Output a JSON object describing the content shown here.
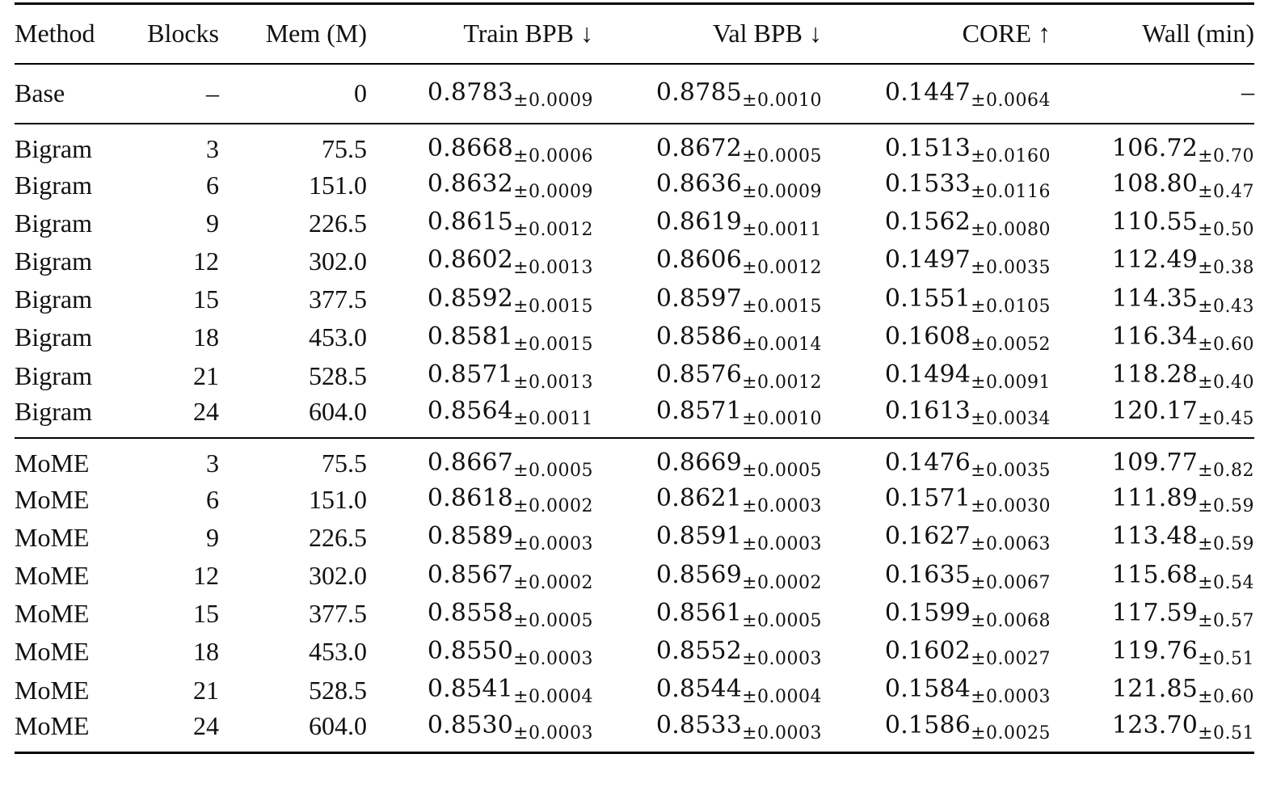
{
  "table": {
    "headers": [
      "Method",
      "Blocks",
      "Mem (M)",
      "Train BPB ↓",
      "Val BPB ↓",
      "CORE ↑",
      "Wall (min)"
    ],
    "base": {
      "method": "Base",
      "blocks": "–",
      "mem": "0",
      "train": "0.8783",
      "train_pm": "±0.0009",
      "val": "0.8785",
      "val_pm": "±0.0010",
      "core": "0.1447",
      "core_pm": "±0.0064",
      "wall": "–",
      "wall_pm": ""
    },
    "bigram": [
      {
        "method": "Bigram",
        "blocks": "3",
        "mem": "75.5",
        "train": "0.8668",
        "train_pm": "±0.0006",
        "val": "0.8672",
        "val_pm": "±0.0005",
        "core": "0.1513",
        "core_pm": "±0.0160",
        "wall": "106.72",
        "wall_pm": "±0.70"
      },
      {
        "method": "Bigram",
        "blocks": "6",
        "mem": "151.0",
        "train": "0.8632",
        "train_pm": "±0.0009",
        "val": "0.8636",
        "val_pm": "±0.0009",
        "core": "0.1533",
        "core_pm": "±0.0116",
        "wall": "108.80",
        "wall_pm": "±0.47"
      },
      {
        "method": "Bigram",
        "blocks": "9",
        "mem": "226.5",
        "train": "0.8615",
        "train_pm": "±0.0012",
        "val": "0.8619",
        "val_pm": "±0.0011",
        "core": "0.1562",
        "core_pm": "±0.0080",
        "wall": "110.55",
        "wall_pm": "±0.50"
      },
      {
        "method": "Bigram",
        "blocks": "12",
        "mem": "302.0",
        "train": "0.8602",
        "train_pm": "±0.0013",
        "val": "0.8606",
        "val_pm": "±0.0012",
        "core": "0.1497",
        "core_pm": "±0.0035",
        "wall": "112.49",
        "wall_pm": "±0.38"
      },
      {
        "method": "Bigram",
        "blocks": "15",
        "mem": "377.5",
        "train": "0.8592",
        "train_pm": "±0.0015",
        "val": "0.8597",
        "val_pm": "±0.0015",
        "core": "0.1551",
        "core_pm": "±0.0105",
        "wall": "114.35",
        "wall_pm": "±0.43"
      },
      {
        "method": "Bigram",
        "blocks": "18",
        "mem": "453.0",
        "train": "0.8581",
        "train_pm": "±0.0015",
        "val": "0.8586",
        "val_pm": "±0.0014",
        "core": "0.1608",
        "core_pm": "±0.0052",
        "wall": "116.34",
        "wall_pm": "±0.60"
      },
      {
        "method": "Bigram",
        "blocks": "21",
        "mem": "528.5",
        "train": "0.8571",
        "train_pm": "±0.0013",
        "val": "0.8576",
        "val_pm": "±0.0012",
        "core": "0.1494",
        "core_pm": "±0.0091",
        "wall": "118.28",
        "wall_pm": "±0.40"
      },
      {
        "method": "Bigram",
        "blocks": "24",
        "mem": "604.0",
        "train": "0.8564",
        "train_pm": "±0.0011",
        "val": "0.8571",
        "val_pm": "±0.0010",
        "core": "0.1613",
        "core_pm": "±0.0034",
        "wall": "120.17",
        "wall_pm": "±0.45"
      }
    ],
    "mome": [
      {
        "method": "MoME",
        "blocks": "3",
        "mem": "75.5",
        "train": "0.8667",
        "train_pm": "±0.0005",
        "val": "0.8669",
        "val_pm": "±0.0005",
        "core": "0.1476",
        "core_pm": "±0.0035",
        "wall": "109.77",
        "wall_pm": "±0.82"
      },
      {
        "method": "MoME",
        "blocks": "6",
        "mem": "151.0",
        "train": "0.8618",
        "train_pm": "±0.0002",
        "val": "0.8621",
        "val_pm": "±0.0003",
        "core": "0.1571",
        "core_pm": "±0.0030",
        "wall": "111.89",
        "wall_pm": "±0.59"
      },
      {
        "method": "MoME",
        "blocks": "9",
        "mem": "226.5",
        "train": "0.8589",
        "train_pm": "±0.0003",
        "val": "0.8591",
        "val_pm": "±0.0003",
        "core": "0.1627",
        "core_pm": "±0.0063",
        "wall": "113.48",
        "wall_pm": "±0.59"
      },
      {
        "method": "MoME",
        "blocks": "12",
        "mem": "302.0",
        "train": "0.8567",
        "train_pm": "±0.0002",
        "val": "0.8569",
        "val_pm": "±0.0002",
        "core": "0.1635",
        "core_pm": "±0.0067",
        "wall": "115.68",
        "wall_pm": "±0.54"
      },
      {
        "method": "MoME",
        "blocks": "15",
        "mem": "377.5",
        "train": "0.8558",
        "train_pm": "±0.0005",
        "val": "0.8561",
        "val_pm": "±0.0005",
        "core": "0.1599",
        "core_pm": "±0.0068",
        "wall": "117.59",
        "wall_pm": "±0.57"
      },
      {
        "method": "MoME",
        "blocks": "18",
        "mem": "453.0",
        "train": "0.8550",
        "train_pm": "±0.0003",
        "val": "0.8552",
        "val_pm": "±0.0003",
        "core": "0.1602",
        "core_pm": "±0.0027",
        "wall": "119.76",
        "wall_pm": "±0.51"
      },
      {
        "method": "MoME",
        "blocks": "21",
        "mem": "528.5",
        "train": "0.8541",
        "train_pm": "±0.0004",
        "val": "0.8544",
        "val_pm": "±0.0004",
        "core": "0.1584",
        "core_pm": "±0.0003",
        "wall": "121.85",
        "wall_pm": "±0.60"
      },
      {
        "method": "MoME",
        "blocks": "24",
        "mem": "604.0",
        "train": "0.8530",
        "train_pm": "±0.0003",
        "val": "0.8533",
        "val_pm": "±0.0003",
        "core": "0.1586",
        "core_pm": "±0.0025",
        "wall": "123.70",
        "wall_pm": "±0.51"
      }
    ]
  }
}
